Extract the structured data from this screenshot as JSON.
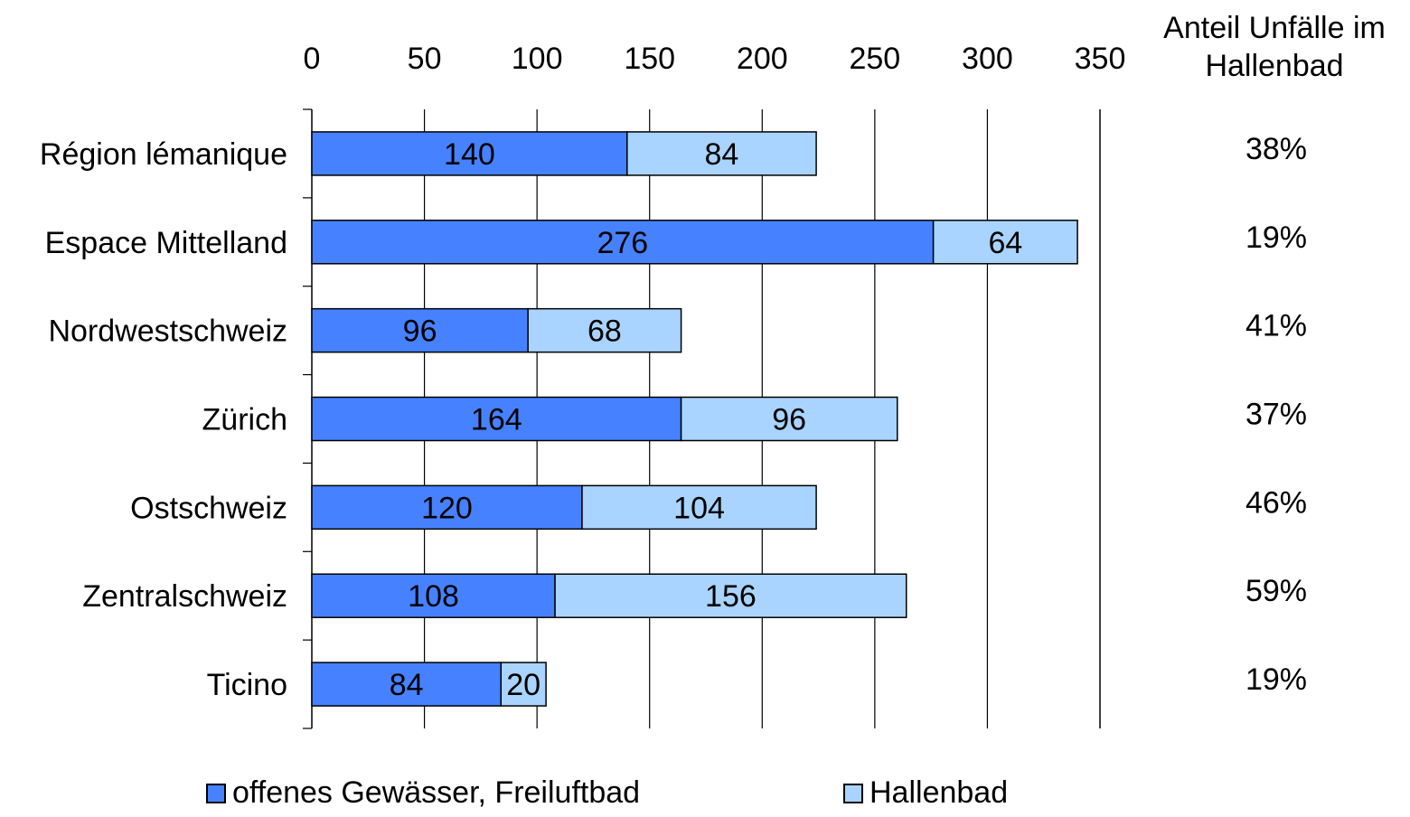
{
  "chart_data": {
    "type": "bar",
    "orientation": "horizontal",
    "stacked": true,
    "categories": [
      "Région lémanique",
      "Espace Mittelland",
      "Nordwestschweiz",
      "Zürich",
      "Ostschweiz",
      "Zentralschweiz",
      "Ticino"
    ],
    "series": [
      {
        "name": "offenes Gewässer, Freiluftbad",
        "color": "#4682ff",
        "values": [
          140,
          276,
          96,
          164,
          120,
          108,
          84
        ]
      },
      {
        "name": "Hallenbad",
        "color": "#a9d4ff",
        "values": [
          84,
          64,
          68,
          96,
          104,
          156,
          20
        ]
      }
    ],
    "xlim": [
      0,
      350
    ],
    "xticks": [
      0,
      50,
      100,
      150,
      200,
      250,
      300,
      350
    ],
    "x_axis_position": "top",
    "grid": "vertical",
    "legend_position": "bottom",
    "share_column": {
      "header": "Anteil Unfälle im Hallenbad",
      "values": [
        "38%",
        "19%",
        "41%",
        "37%",
        "46%",
        "59%",
        "19%"
      ]
    }
  }
}
